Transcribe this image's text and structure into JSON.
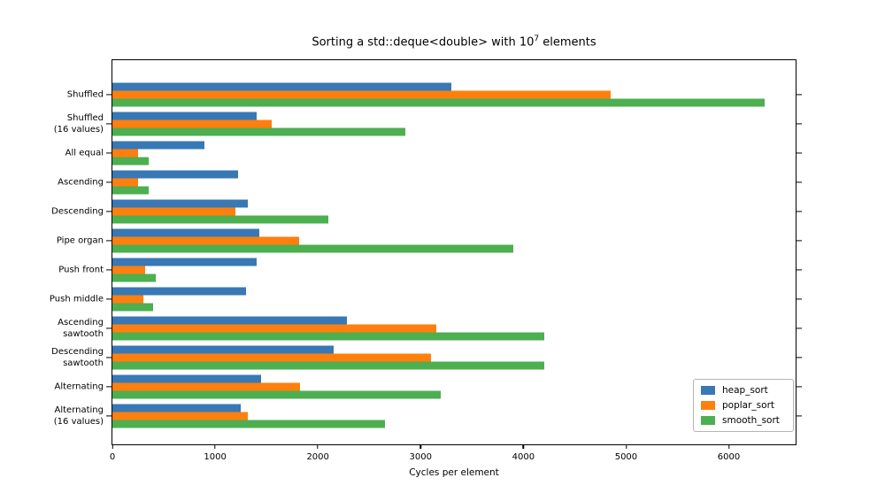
{
  "figure": {
    "background": "#ffffff",
    "title_parts": {
      "prefix": "Sorting a std::deque<double> with 10",
      "exponent": "7",
      "suffix": " elements"
    }
  },
  "chart_data": {
    "type": "bar",
    "orientation": "horizontal",
    "title": "Sorting a std::deque<double> with 10^7 elements",
    "xlabel": "Cycles per element",
    "ylabel": "",
    "xlim": [
      0,
      6650
    ],
    "xticks": [
      0,
      1000,
      2000,
      3000,
      4000,
      5000,
      6000
    ],
    "grid": false,
    "legend_position": "lower right",
    "categories": [
      "Shuffled",
      "Shuffled\n(16 values)",
      "All equal",
      "Ascending",
      "Descending",
      "Pipe organ",
      "Push front",
      "Push middle",
      "Ascending\nsawtooth",
      "Descending\nsawtooth",
      "Alternating",
      "Alternating\n(16 values)"
    ],
    "series": [
      {
        "name": "heap_sort",
        "color": "#3878b4",
        "values": [
          3300,
          1400,
          900,
          1220,
          1320,
          1430,
          1400,
          1300,
          2280,
          2150,
          1450,
          1250
        ]
      },
      {
        "name": "poplar_sort",
        "color": "#ff7f0e",
        "values": [
          4850,
          1550,
          250,
          250,
          1200,
          1820,
          320,
          300,
          3150,
          3100,
          1830,
          1320
        ]
      },
      {
        "name": "smooth_sort",
        "color": "#4caf50",
        "values": [
          6350,
          2850,
          350,
          350,
          2100,
          3900,
          420,
          400,
          4200,
          4200,
          3200,
          2650
        ]
      }
    ]
  }
}
